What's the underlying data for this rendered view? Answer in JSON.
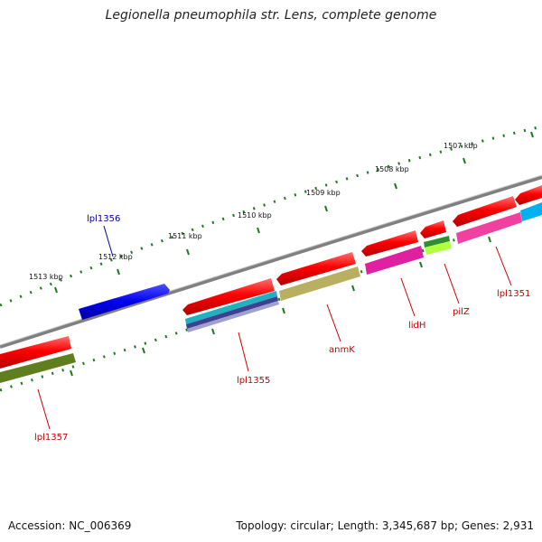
{
  "title": "Legionella pneumophila str. Lens, complete genome",
  "footer": {
    "accession": "Accession: NC_006369",
    "summary": "Topology: circular; Length: 3,345,687 bp; Genes: 2,931"
  },
  "colors": {
    "backbone": "#808080",
    "ticks": "#1f7a1f",
    "red_gene": "#ff0000",
    "blue_gene": "#0000ee",
    "label_red": "#cc0000",
    "label_blue": "#0000aa"
  },
  "scale": {
    "ticks": [
      {
        "label": "1513 kbp"
      },
      {
        "label": "1512 kbp"
      },
      {
        "label": "1511 kbp"
      },
      {
        "label": "1510 kbp"
      },
      {
        "label": "1509 kbp"
      },
      {
        "label": "1508 kbp"
      },
      {
        "label": "1507 kbp"
      }
    ]
  },
  "genes": [
    {
      "label": "lpl1356"
    },
    {
      "label": "lpl1357"
    },
    {
      "label": "lpl1355"
    },
    {
      "label": "anmK"
    },
    {
      "label": "lidH"
    },
    {
      "label": "pilZ"
    },
    {
      "label": "lpl1351"
    }
  ]
}
